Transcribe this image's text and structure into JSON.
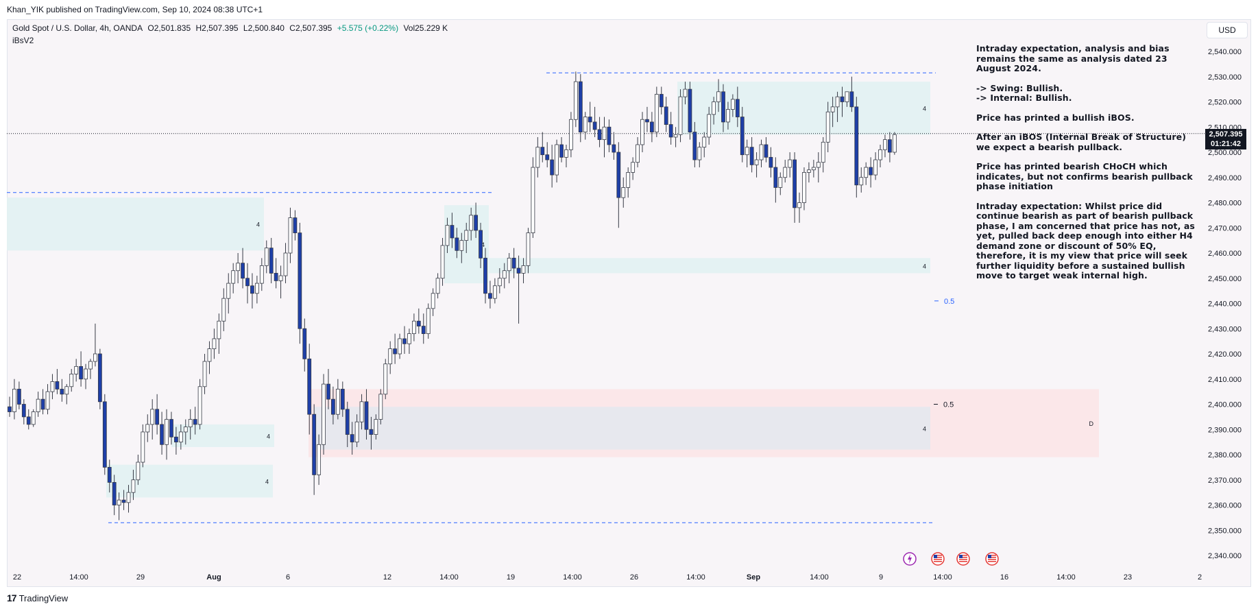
{
  "header": {
    "published": "Khan_YIK published on TradingView.com, Sep 10, 2024 08:38 UTC+1"
  },
  "legend": {
    "symbol": "Gold Spot / U.S. Dollar, 4h, OANDA",
    "open": "O2,501.835",
    "high": "H2,507.395",
    "low": "L2,500.840",
    "close": "C2,507.395",
    "change": "+5.575 (+0.22%)",
    "volume": "Vol25.229 K"
  },
  "indicator_label": "iBsV2",
  "currency": "USD",
  "price_tag": {
    "price": "2,507.395",
    "timer": "01:21:42"
  },
  "annotation": [
    "Intraday expectation, analysis and bias remains the same as analysis dated 23 August 2024.",
    "-> Swing:  Bullish.\n-> Internal:  Bullish.",
    "Price has printed a bullish iBOS.",
    "After an iBOS (Internal Break of Structure) we expect a bearish pullback.",
    "Price has printed bearish CHoCH which indicates, but not confirms bearish pullback phase initiation",
    "Intraday expectation: Whilst price did continue bearish as part of bearish pullback phase, I am concerned that price has not, as yet, pulled back deep enough into either H4 demand zone or discount of 50% EQ, therefore, it is my view that price will seek further liquidity before a sustained bullish move to target weak internal high."
  ],
  "footer": {
    "brand": "TradingView"
  },
  "colors": {
    "bull": "#ffffff",
    "bear": "#1e3fa8",
    "wick": "#363a45",
    "supply_zone": "#fbe6e8",
    "demand_zone": "#e3f1f2",
    "discount_zone": "#e6e8ee",
    "dashed_line": "#2962ff"
  },
  "chart_data": {
    "type": "candlestick",
    "symbol": "XAUUSD",
    "timeframe": "4h",
    "y_axis": {
      "ticks": [
        "2,540.000",
        "2,530.000",
        "2,520.000",
        "2,510.000",
        "2,500.000",
        "2,490.000",
        "2,480.000",
        "2,470.000",
        "2,460.000",
        "2,450.000",
        "2,440.000",
        "2,430.000",
        "2,420.000",
        "2,410.000",
        "2,400.000",
        "2,390.000",
        "2,380.000",
        "2,370.000",
        "2,360.000",
        "2,350.000",
        "2,340.000"
      ],
      "tick_values": [
        2540,
        2530,
        2520,
        2510,
        2500,
        2490,
        2480,
        2470,
        2460,
        2450,
        2440,
        2430,
        2420,
        2410,
        2400,
        2390,
        2380,
        2370,
        2360,
        2350,
        2340
      ]
    },
    "x_axis": {
      "ticks": [
        "22",
        "14:00",
        "29",
        "Aug",
        "6",
        "12",
        "14:00",
        "19",
        "14:00",
        "26",
        "14:00",
        "Sep",
        "14:00",
        "9",
        "14:00",
        "16",
        "14:00",
        "23",
        "2"
      ]
    },
    "candles_ohlc": [
      [
        2399,
        2403,
        2395,
        2397
      ],
      [
        2397,
        2410,
        2394,
        2406
      ],
      [
        2406,
        2409,
        2398,
        2400
      ],
      [
        2400,
        2402,
        2392,
        2395
      ],
      [
        2395,
        2398,
        2390,
        2392
      ],
      [
        2392,
        2398,
        2391,
        2397
      ],
      [
        2397,
        2405,
        2395,
        2402
      ],
      [
        2402,
        2406,
        2396,
        2398
      ],
      [
        2398,
        2408,
        2396,
        2405
      ],
      [
        2405,
        2412,
        2402,
        2409
      ],
      [
        2409,
        2414,
        2404,
        2406
      ],
      [
        2406,
        2410,
        2401,
        2404
      ],
      [
        2404,
        2408,
        2400,
        2407
      ],
      [
        2407,
        2414,
        2405,
        2412
      ],
      [
        2412,
        2418,
        2409,
        2415
      ],
      [
        2415,
        2421,
        2407,
        2410
      ],
      [
        2410,
        2416,
        2406,
        2414
      ],
      [
        2414,
        2418,
        2410,
        2417
      ],
      [
        2417,
        2432,
        2415,
        2420
      ],
      [
        2420,
        2422,
        2398,
        2401
      ],
      [
        2401,
        2404,
        2372,
        2375
      ],
      [
        2375,
        2378,
        2365,
        2369
      ],
      [
        2369,
        2372,
        2356,
        2360
      ],
      [
        2360,
        2365,
        2354,
        2362
      ],
      [
        2362,
        2366,
        2358,
        2361
      ],
      [
        2361,
        2368,
        2357,
        2365
      ],
      [
        2365,
        2374,
        2362,
        2370
      ],
      [
        2370,
        2380,
        2368,
        2377
      ],
      [
        2377,
        2392,
        2375,
        2389
      ],
      [
        2389,
        2396,
        2385,
        2392
      ],
      [
        2392,
        2402,
        2386,
        2398
      ],
      [
        2398,
        2404,
        2388,
        2392
      ],
      [
        2392,
        2397,
        2380,
        2384
      ],
      [
        2384,
        2398,
        2378,
        2394
      ],
      [
        2394,
        2397,
        2384,
        2387
      ],
      [
        2387,
        2391,
        2380,
        2385
      ],
      [
        2385,
        2392,
        2382,
        2389
      ],
      [
        2389,
        2394,
        2384,
        2391
      ],
      [
        2391,
        2398,
        2386,
        2394
      ],
      [
        2394,
        2399,
        2388,
        2392
      ],
      [
        2392,
        2410,
        2390,
        2407
      ],
      [
        2407,
        2420,
        2404,
        2417
      ],
      [
        2417,
        2425,
        2412,
        2422
      ],
      [
        2422,
        2430,
        2418,
        2426
      ],
      [
        2426,
        2436,
        2420,
        2433
      ],
      [
        2433,
        2446,
        2429,
        2442
      ],
      [
        2442,
        2452,
        2436,
        2448
      ],
      [
        2448,
        2456,
        2444,
        2453
      ],
      [
        2453,
        2460,
        2448,
        2456
      ],
      [
        2456,
        2462,
        2446,
        2450
      ],
      [
        2450,
        2456,
        2440,
        2447
      ],
      [
        2447,
        2452,
        2438,
        2444
      ],
      [
        2444,
        2451,
        2440,
        2448
      ],
      [
        2448,
        2458,
        2445,
        2455
      ],
      [
        2455,
        2465,
        2452,
        2462
      ],
      [
        2462,
        2466,
        2448,
        2452
      ],
      [
        2452,
        2458,
        2446,
        2449
      ],
      [
        2449,
        2455,
        2442,
        2451
      ],
      [
        2451,
        2464,
        2448,
        2460
      ],
      [
        2460,
        2478,
        2456,
        2474
      ],
      [
        2474,
        2477,
        2465,
        2468
      ],
      [
        2468,
        2472,
        2424,
        2430
      ],
      [
        2430,
        2434,
        2413,
        2418
      ],
      [
        2418,
        2424,
        2388,
        2396
      ],
      [
        2396,
        2400,
        2364,
        2372
      ],
      [
        2372,
        2388,
        2368,
        2384
      ],
      [
        2384,
        2412,
        2380,
        2408
      ],
      [
        2408,
        2414,
        2398,
        2402
      ],
      [
        2402,
        2407,
        2392,
        2396
      ],
      [
        2396,
        2410,
        2394,
        2406
      ],
      [
        2406,
        2409,
        2395,
        2398
      ],
      [
        2398,
        2401,
        2383,
        2388
      ],
      [
        2388,
        2393,
        2380,
        2385
      ],
      [
        2385,
        2396,
        2383,
        2393
      ],
      [
        2393,
        2404,
        2390,
        2401
      ],
      [
        2401,
        2406,
        2386,
        2390
      ],
      [
        2390,
        2395,
        2382,
        2388
      ],
      [
        2388,
        2396,
        2386,
        2394
      ],
      [
        2394,
        2406,
        2392,
        2404
      ],
      [
        2404,
        2418,
        2402,
        2416
      ],
      [
        2416,
        2425,
        2412,
        2422
      ],
      [
        2422,
        2428,
        2416,
        2420
      ],
      [
        2420,
        2428,
        2418,
        2426
      ],
      [
        2426,
        2431,
        2420,
        2424
      ],
      [
        2424,
        2430,
        2420,
        2428
      ],
      [
        2428,
        2436,
        2425,
        2433
      ],
      [
        2433,
        2438,
        2428,
        2431
      ],
      [
        2431,
        2436,
        2424,
        2428
      ],
      [
        2428,
        2440,
        2426,
        2438
      ],
      [
        2438,
        2446,
        2435,
        2444
      ],
      [
        2444,
        2452,
        2442,
        2450
      ],
      [
        2450,
        2466,
        2447,
        2463
      ],
      [
        2463,
        2474,
        2460,
        2471
      ],
      [
        2471,
        2476,
        2462,
        2466
      ],
      [
        2466,
        2470,
        2458,
        2461
      ],
      [
        2461,
        2468,
        2456,
        2465
      ],
      [
        2465,
        2472,
        2460,
        2469
      ],
      [
        2469,
        2478,
        2465,
        2475
      ],
      [
        2475,
        2480,
        2466,
        2469
      ],
      [
        2469,
        2472,
        2454,
        2458
      ],
      [
        2458,
        2462,
        2440,
        2444
      ],
      [
        2444,
        2449,
        2438,
        2442
      ],
      [
        2442,
        2450,
        2440,
        2447
      ],
      [
        2447,
        2454,
        2444,
        2450
      ],
      [
        2450,
        2456,
        2446,
        2453
      ],
      [
        2453,
        2460,
        2448,
        2458
      ],
      [
        2458,
        2462,
        2450,
        2454
      ],
      [
        2454,
        2459,
        2432,
        2452
      ],
      [
        2452,
        2458,
        2448,
        2455
      ],
      [
        2455,
        2470,
        2452,
        2468
      ],
      [
        2468,
        2498,
        2466,
        2494
      ],
      [
        2494,
        2506,
        2490,
        2502
      ],
      [
        2502,
        2508,
        2496,
        2499
      ],
      [
        2499,
        2504,
        2494,
        2497
      ],
      [
        2497,
        2503,
        2486,
        2491
      ],
      [
        2491,
        2505,
        2488,
        2503
      ],
      [
        2503,
        2506,
        2496,
        2498
      ],
      [
        2498,
        2503,
        2494,
        2501
      ],
      [
        2501,
        2516,
        2498,
        2513
      ],
      [
        2513,
        2532,
        2510,
        2528
      ],
      [
        2528,
        2531,
        2504,
        2508
      ],
      [
        2508,
        2516,
        2505,
        2514
      ],
      [
        2514,
        2520,
        2508,
        2512
      ],
      [
        2512,
        2518,
        2506,
        2509
      ],
      [
        2509,
        2514,
        2502,
        2505
      ],
      [
        2505,
        2514,
        2498,
        2510
      ],
      [
        2510,
        2513,
        2500,
        2503
      ],
      [
        2503,
        2508,
        2497,
        2500
      ],
      [
        2500,
        2504,
        2470,
        2482
      ],
      [
        2482,
        2490,
        2478,
        2486
      ],
      [
        2486,
        2494,
        2482,
        2492
      ],
      [
        2492,
        2498,
        2489,
        2496
      ],
      [
        2496,
        2506,
        2494,
        2503
      ],
      [
        2503,
        2516,
        2500,
        2513
      ],
      [
        2513,
        2518,
        2508,
        2512
      ],
      [
        2512,
        2516,
        2504,
        2508
      ],
      [
        2508,
        2526,
        2506,
        2523
      ],
      [
        2523,
        2526,
        2515,
        2518
      ],
      [
        2518,
        2522,
        2508,
        2511
      ],
      [
        2511,
        2516,
        2503,
        2506
      ],
      [
        2506,
        2510,
        2502,
        2507
      ],
      [
        2507,
        2525,
        2504,
        2522
      ],
      [
        2522,
        2528,
        2519,
        2525
      ],
      [
        2525,
        2528,
        2505,
        2508
      ],
      [
        2508,
        2512,
        2494,
        2497
      ],
      [
        2497,
        2504,
        2494,
        2502
      ],
      [
        2502,
        2508,
        2498,
        2506
      ],
      [
        2506,
        2518,
        2503,
        2515
      ],
      [
        2515,
        2522,
        2511,
        2520
      ],
      [
        2520,
        2529,
        2516,
        2524
      ],
      [
        2524,
        2527,
        2508,
        2512
      ],
      [
        2512,
        2520,
        2509,
        2517
      ],
      [
        2517,
        2523,
        2514,
        2521
      ],
      [
        2521,
        2526,
        2510,
        2514
      ],
      [
        2514,
        2518,
        2496,
        2499
      ],
      [
        2499,
        2505,
        2494,
        2502
      ],
      [
        2502,
        2506,
        2492,
        2495
      ],
      [
        2495,
        2500,
        2490,
        2497
      ],
      [
        2497,
        2505,
        2494,
        2503
      ],
      [
        2503,
        2506,
        2496,
        2498
      ],
      [
        2498,
        2502,
        2490,
        2494
      ],
      [
        2494,
        2498,
        2480,
        2486
      ],
      [
        2486,
        2492,
        2483,
        2490
      ],
      [
        2490,
        2497,
        2488,
        2494
      ],
      [
        2494,
        2500,
        2490,
        2497
      ],
      [
        2497,
        2500,
        2472,
        2478
      ],
      [
        2478,
        2484,
        2472,
        2480
      ],
      [
        2480,
        2494,
        2477,
        2492
      ],
      [
        2492,
        2496,
        2488,
        2493
      ],
      [
        2493,
        2497,
        2490,
        2494
      ],
      [
        2494,
        2500,
        2488,
        2496
      ],
      [
        2496,
        2506,
        2492,
        2504
      ],
      [
        2504,
        2520,
        2500,
        2516
      ],
      [
        2516,
        2522,
        2510,
        2518
      ],
      [
        2518,
        2524,
        2512,
        2522
      ],
      [
        2522,
        2526,
        2514,
        2520
      ],
      [
        2520,
        2524,
        2518,
        2524
      ],
      [
        2524,
        2530,
        2516,
        2518
      ],
      [
        2518,
        2522,
        2482,
        2487
      ],
      [
        2487,
        2494,
        2484,
        2490
      ],
      [
        2490,
        2496,
        2487,
        2494
      ],
      [
        2494,
        2498,
        2486,
        2491
      ],
      [
        2491,
        2500,
        2489,
        2497
      ],
      [
        2497,
        2503,
        2494,
        2501
      ],
      [
        2501,
        2507,
        2498,
        2505
      ],
      [
        2505,
        2508,
        2496,
        2500
      ],
      [
        2500,
        2508,
        2499,
        2507
      ]
    ],
    "zones": [
      {
        "type": "supply",
        "label": "4",
        "top": 2528,
        "bottom": 2507
      },
      {
        "type": "demand",
        "label": "4",
        "top": 2458,
        "bottom": 2452
      },
      {
        "type": "demand",
        "label": "4",
        "top": 2479,
        "bottom": 2448
      },
      {
        "type": "demand",
        "label": "4",
        "top": 2392,
        "bottom": 2383
      },
      {
        "type": "demand",
        "label": "4",
        "top": 2376,
        "bottom": 2363
      },
      {
        "type": "demand",
        "label": "4",
        "top": 2482,
        "bottom": 2461
      },
      {
        "type": "daily",
        "label": "D",
        "top": 2406,
        "bottom": 2379
      },
      {
        "type": "discount",
        "label": "4",
        "top": 2399,
        "bottom": 2382
      }
    ],
    "levels": [
      {
        "name": "weak-high",
        "value": 2531.5
      },
      {
        "name": "strong-low",
        "value": 2353
      },
      {
        "name": "prior-high",
        "value": 2484
      },
      {
        "name": "current-price",
        "value": 2507.4
      }
    ],
    "eq_labels": [
      {
        "label": "0.5",
        "value": 2441
      },
      {
        "label": "0.5",
        "value": 2400
      }
    ]
  }
}
